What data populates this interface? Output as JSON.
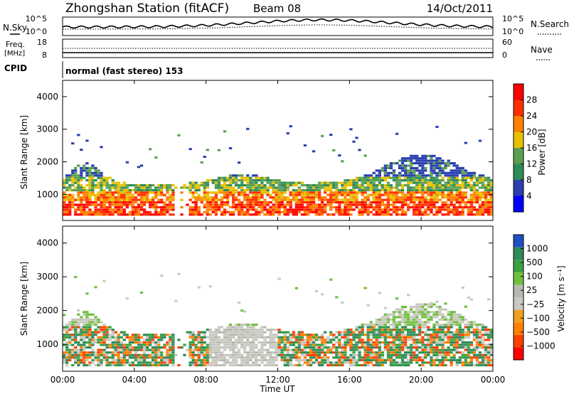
{
  "header": {
    "station": "Zhongshan Station (fitACF)",
    "beam": "Beam 08",
    "date": "14/Oct/2011"
  },
  "colors": {
    "power_scale": [
      "#0000ff",
      "#2a3fb0",
      "#2e8b57",
      "#5aa050",
      "#e8c000",
      "#ff8000",
      "#ff3000",
      "#ff0000"
    ],
    "velocity_scale": [
      "#ff0000",
      "#ff4000",
      "#ff8000",
      "#f0a020",
      "#c8c8c0",
      "#b8b8b0",
      "#70c040",
      "#3aa040",
      "#2e8b57",
      "#1e50c0"
    ]
  },
  "chart_data": [
    {
      "type": "line",
      "name": "noise-panel",
      "left_label": "N.Sky",
      "right_label": "N.Search",
      "left_ticks": [
        "10^5",
        "10^0"
      ],
      "right_ticks": [
        "10^5",
        "10^0"
      ]
    },
    {
      "type": "line",
      "name": "freq-panel",
      "left_label_top": "Freq.",
      "left_label_unit": "[MHz]",
      "right_label": "Nave",
      "left_ticks": [
        "18",
        "8"
      ],
      "right_ticks": [
        "60",
        "0"
      ],
      "cpid_label": "CPID",
      "cpid_value": "normal (fast stereo) 153"
    },
    {
      "type": "heatmap",
      "name": "power-panel",
      "ylabel": "Slant Range [km]",
      "ylim": [
        200,
        4500
      ],
      "yticks": [
        "1000",
        "2000",
        "3000",
        "4000"
      ],
      "colorbar_label": "Power [dB]",
      "colorbar_ticks": [
        "4",
        "8",
        "12",
        "16",
        "20",
        "24",
        "28"
      ],
      "colorbar_range": [
        0,
        32
      ]
    },
    {
      "type": "heatmap",
      "name": "velocity-panel",
      "ylabel": "Slant Range [km]",
      "ylim": [
        200,
        4500
      ],
      "yticks": [
        "1000",
        "2000",
        "3000",
        "4000"
      ],
      "colorbar_label": "Velocity [m s⁻¹]",
      "colorbar_ticks": [
        "1000",
        "500",
        "100",
        "25",
        "−25",
        "−100",
        "−500",
        "−1000"
      ]
    }
  ],
  "xaxis": {
    "ticks": [
      "00:00",
      "04:00",
      "08:00",
      "12:00",
      "16:00",
      "20:00",
      "00:00"
    ],
    "label": "Time UT"
  }
}
